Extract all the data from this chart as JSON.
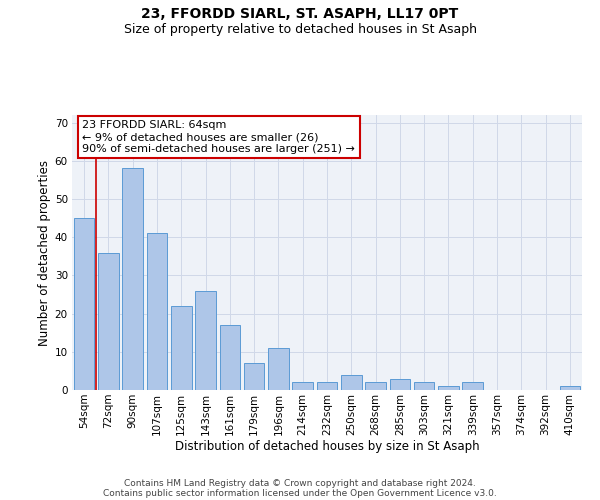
{
  "title1": "23, FFORDD SIARL, ST. ASAPH, LL17 0PT",
  "title2": "Size of property relative to detached houses in St Asaph",
  "xlabel": "Distribution of detached houses by size in St Asaph",
  "ylabel": "Number of detached properties",
  "categories": [
    "54sqm",
    "72sqm",
    "90sqm",
    "107sqm",
    "125sqm",
    "143sqm",
    "161sqm",
    "179sqm",
    "196sqm",
    "214sqm",
    "232sqm",
    "250sqm",
    "268sqm",
    "285sqm",
    "303sqm",
    "321sqm",
    "339sqm",
    "357sqm",
    "374sqm",
    "392sqm",
    "410sqm"
  ],
  "values": [
    45,
    36,
    58,
    41,
    22,
    26,
    17,
    7,
    11,
    2,
    2,
    4,
    2,
    3,
    2,
    1,
    2,
    0,
    0,
    0,
    1
  ],
  "bar_color": "#aec6e8",
  "bar_edge_color": "#5b9bd5",
  "grid_color": "#d0d8e8",
  "bg_color": "#eef2f8",
  "annotation_box_text": "23 FFORDD SIARL: 64sqm\n← 9% of detached houses are smaller (26)\n90% of semi-detached houses are larger (251) →",
  "annotation_box_color": "#ffffff",
  "annotation_box_edge_color": "#cc0000",
  "vline_x_index": 0.5,
  "vline_color": "#cc0000",
  "ylim": [
    0,
    72
  ],
  "yticks": [
    0,
    10,
    20,
    30,
    40,
    50,
    60,
    70
  ],
  "footer_line1": "Contains HM Land Registry data © Crown copyright and database right 2024.",
  "footer_line2": "Contains public sector information licensed under the Open Government Licence v3.0.",
  "title1_fontsize": 10,
  "title2_fontsize": 9,
  "xlabel_fontsize": 8.5,
  "ylabel_fontsize": 8.5,
  "tick_fontsize": 7.5,
  "annot_fontsize": 8,
  "footer_fontsize": 6.5
}
